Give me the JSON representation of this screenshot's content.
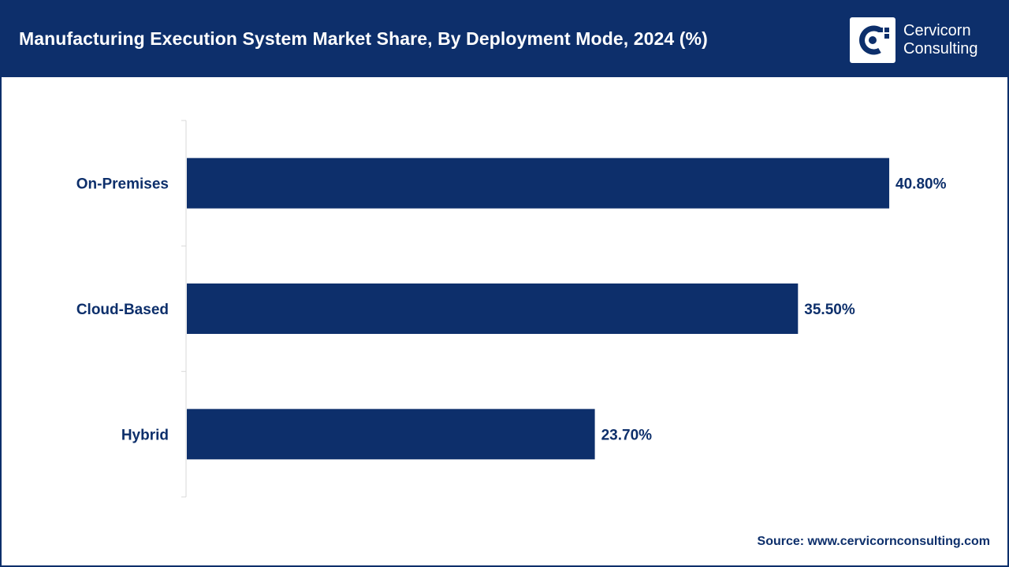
{
  "header": {
    "title": "Manufacturing Execution System Market Share, By Deployment Mode, 2024 (%)"
  },
  "logo": {
    "line1": "Cervicorn",
    "line2": "Consulting"
  },
  "colors": {
    "brand": "#0d2f6b",
    "bar": "#0d2f6b",
    "axis": "#d9d9d9",
    "label": "#0d2f6b"
  },
  "chart_data": {
    "type": "bar",
    "orientation": "horizontal",
    "title": "Manufacturing Execution System Market Share, By Deployment Mode, 2024 (%)",
    "categories": [
      "On-Premises",
      "Cloud-Based",
      "Hybrid"
    ],
    "values": [
      40.8,
      35.5,
      23.7
    ],
    "value_labels": [
      "40.80%",
      "35.50%",
      "23.70%"
    ],
    "unit": "%",
    "xlabel": "",
    "ylabel": "",
    "xlim": [
      0,
      42.4
    ],
    "grid": false,
    "legend": "none"
  },
  "footer": {
    "source": "Source: www.cervicornconsulting.com"
  }
}
